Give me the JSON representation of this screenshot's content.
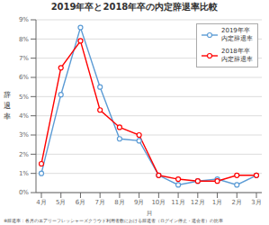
{
  "chart_data": {
    "type": "line",
    "title": "2019年卒と2018年卒の内定辞退率比較",
    "xlabel": "月",
    "ylabel": "辞\n退\n率",
    "annotations": [
      "※辞退率：各月のエアリーフレッシャーズクラウド利用者数における辞退者（ログイン停止・退会者）の比率"
    ],
    "categories": [
      "4月",
      "5月",
      "6月",
      "7月",
      "8月",
      "9月",
      "10月",
      "11月",
      "12月",
      "1月",
      "2月",
      "3月"
    ],
    "series": [
      {
        "name": "2019年卒\n内定辞退率",
        "color": "#5B9BD5",
        "marker": "circle",
        "values": [
          1.0,
          5.1,
          8.6,
          5.5,
          2.8,
          2.7,
          0.9,
          0.4,
          0.6,
          0.7,
          0.4,
          0.9
        ]
      },
      {
        "name": "2018年卒\n内定辞退率",
        "color": "#FF0000",
        "marker": "circle",
        "values": [
          1.5,
          6.5,
          7.9,
          4.3,
          3.4,
          3.0,
          0.9,
          0.7,
          0.6,
          0.6,
          0.9,
          0.9
        ]
      }
    ],
    "ylim": [
      0,
      9
    ],
    "yticks": [
      {
        "value": 0,
        "label": "0%"
      },
      {
        "value": 1,
        "label": "1%"
      },
      {
        "value": 2,
        "label": "2%"
      },
      {
        "value": 3,
        "label": "3%"
      },
      {
        "value": 4,
        "label": "4%"
      },
      {
        "value": 5,
        "label": "5%"
      },
      {
        "value": 6,
        "label": "6%"
      },
      {
        "value": 7,
        "label": "7%"
      },
      {
        "value": 8,
        "label": "8%"
      },
      {
        "value": 9,
        "label": "9%"
      }
    ],
    "grid": true,
    "legend": "upper right"
  }
}
